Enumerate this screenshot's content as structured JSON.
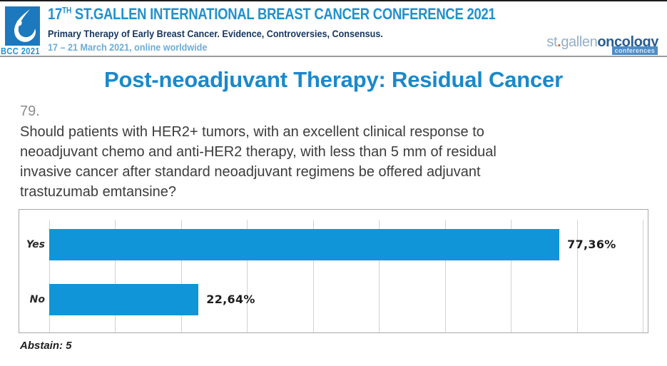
{
  "header": {
    "logo_caption": "BCC 2021",
    "title_num": "17",
    "title_sup": "TH",
    "title_rest": " ST.GALLEN INTERNATIONAL BREAST CANCER CONFERENCE 2021",
    "subtitle": "Primary Therapy of Early Breast Cancer. Evidence, Controversies, Consensus.",
    "dates": "17 – 21 March 2021, online worldwide",
    "brand": {
      "part1": "st",
      "dot": ".",
      "part2": "gallen",
      "part3": "oncology",
      "tag": "conferences"
    }
  },
  "slide": {
    "title": "Post-neoadjuvant Therapy: Residual Cancer",
    "question_number": "79.",
    "question_lines": [
      "Should patients with HER2+ tumors, with an excellent clinical response to",
      "neoadjuvant chemo and anti-HER2 therapy, with less than 5 mm of residual",
      "invasive cancer after standard neoadjuvant regimens be offered adjuvant",
      "trastuzumab emtansine?"
    ],
    "abstain_label": "Abstain: 5"
  },
  "chart_data": {
    "type": "bar",
    "orientation": "horizontal",
    "categories": [
      "Yes",
      "No"
    ],
    "values": [
      77.36,
      22.64
    ],
    "value_labels": [
      "77,36%",
      "22,64%"
    ],
    "xlim": [
      0,
      90
    ],
    "gridline_interval": 10,
    "grid": true,
    "legend": "none",
    "bar_color": "#1095d8",
    "title": "",
    "xlabel": "",
    "ylabel": ""
  },
  "colors": {
    "header_title": "#2191cc",
    "header_subtitle": "#16365f",
    "header_dates": "#6cacd8",
    "slide_title": "#1989cb",
    "bar_blue": "#1095d8",
    "question_text": "#3c3c3c",
    "divider": "#9c9c9c"
  }
}
